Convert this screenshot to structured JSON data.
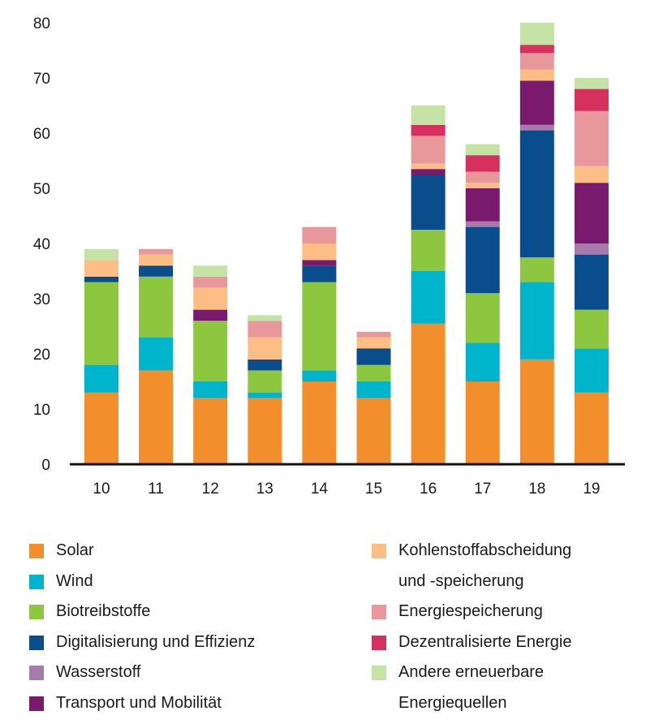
{
  "chart_data": {
    "type": "bar",
    "stacked": true,
    "title": "",
    "xlabel": "",
    "ylabel": "",
    "ylim": [
      0,
      80
    ],
    "yticks": [
      0,
      10,
      20,
      30,
      40,
      50,
      60,
      70,
      80
    ],
    "grid": false,
    "legend_position": "bottom",
    "categories": [
      "10",
      "11",
      "12",
      "13",
      "14",
      "15",
      "16",
      "17",
      "18",
      "19"
    ],
    "series": [
      {
        "name": "Solar",
        "color": "#F28E2B",
        "values": [
          13,
          17,
          12,
          12,
          15,
          12,
          25.5,
          15,
          19,
          13
        ]
      },
      {
        "name": "Wind",
        "color": "#00B4CC",
        "values": [
          5,
          6,
          3,
          1,
          2,
          3,
          9.5,
          7,
          14,
          8
        ]
      },
      {
        "name": "Biotreibstoffe",
        "color": "#8DC63F",
        "values": [
          15,
          11,
          11,
          4,
          16,
          3,
          7.5,
          9,
          4.5,
          7
        ]
      },
      {
        "name": "Digitalisierung und Effizienz",
        "color": "#0A4D8C",
        "values": [
          1,
          2,
          0,
          2,
          3,
          3,
          10,
          12,
          23,
          10
        ]
      },
      {
        "name": "Wasserstoff",
        "color": "#A67BAA",
        "values": [
          0,
          0,
          0,
          0,
          0,
          0,
          0,
          1,
          1,
          2
        ]
      },
      {
        "name": "Transport und Mobilität",
        "color": "#7A1A6E",
        "values": [
          0,
          0,
          2,
          0,
          1,
          0,
          1,
          6,
          8,
          11
        ]
      },
      {
        "name": "Kohlenstoffabscheidung und -speicherung",
        "color": "#FCBE85",
        "values": [
          3,
          2,
          4,
          4,
          3,
          2,
          1,
          1,
          2,
          3
        ]
      },
      {
        "name": "Energiespeicherung",
        "color": "#E8989B",
        "values": [
          0,
          1,
          2,
          3,
          3,
          1,
          5,
          2,
          3,
          10
        ]
      },
      {
        "name": "Dezentralisierte Energie",
        "color": "#D6305F",
        "values": [
          0,
          0,
          0,
          0,
          0,
          0,
          2,
          3,
          1.5,
          4
        ]
      },
      {
        "name": "Andere erneuerbare Energiequellen",
        "color": "#C5E3A4",
        "values": [
          2,
          0,
          2,
          1,
          0,
          0,
          3.5,
          2,
          4,
          2
        ]
      }
    ]
  },
  "legend": {
    "left": [
      {
        "label": "Solar",
        "color": "#F28E2B"
      },
      {
        "label": "Wind",
        "color": "#00B4CC"
      },
      {
        "label": "Biotreibstoffe",
        "color": "#8DC63F"
      },
      {
        "label": "Digitalisierung und Effizienz",
        "color": "#0A4D8C"
      },
      {
        "label": "Wasserstoff",
        "color": "#A67BAA"
      },
      {
        "label": "Transport und Mobilität",
        "color": "#7A1A6E"
      }
    ],
    "right": [
      {
        "label": "Kohlenstoffabscheidung",
        "label2": "und -speicherung",
        "color": "#FCBE85"
      },
      {
        "label": "Energiespeicherung",
        "color": "#E8989B"
      },
      {
        "label": "Dezentralisierte Energie",
        "color": "#D6305F"
      },
      {
        "label": "Andere erneuerbare",
        "label2": "Energiequellen",
        "color": "#C5E3A4"
      }
    ]
  }
}
